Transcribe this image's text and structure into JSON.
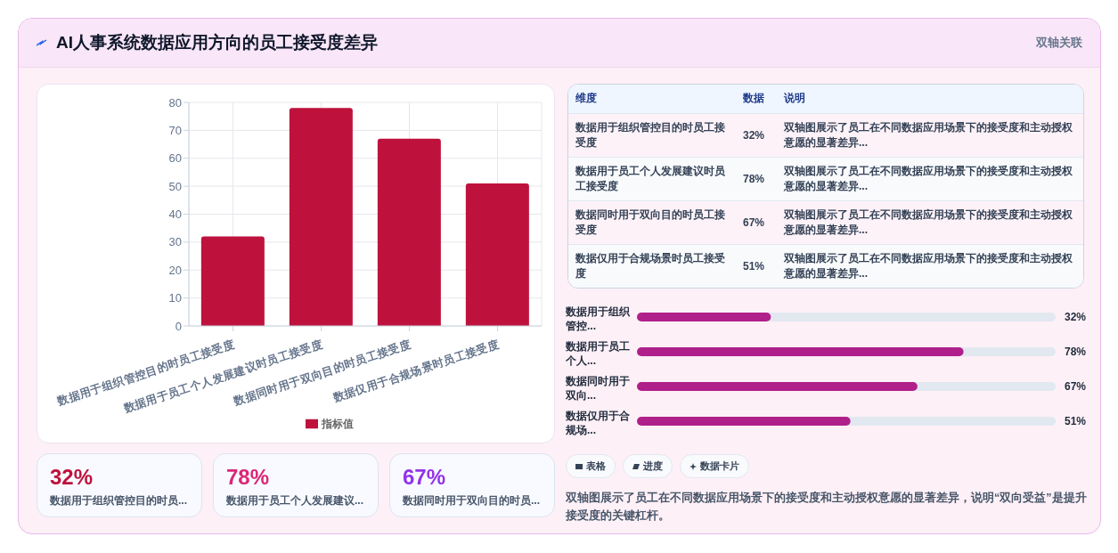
{
  "chart_data": [
    {
      "type": "bar",
      "title": "AI人事系统数据应用方向的员工接受度差异",
      "annotations": [
        "双轴关联"
      ],
      "categories": [
        "数据用于组织管控目的时员工接受度",
        "数据用于员工个人发展建议时员工接受度",
        "数据同时用于双向目的时员工接受度",
        "数据仅用于合规场景时员工接受度"
      ],
      "series": [
        {
          "name": "指标值",
          "color": "#be123c",
          "values": [
            32,
            78,
            67,
            51
          ]
        }
      ],
      "ylim": [
        0,
        80
      ],
      "yticks": [
        0,
        10,
        20,
        30,
        40,
        50,
        60,
        70,
        80
      ],
      "grid": true,
      "legend": "bottom"
    },
    {
      "type": "other",
      "categories": [
        "数据用于组织管控目的时员工接受度",
        "数据用于员工个人发展建议时员工接受度",
        "数据同时用于双向目的时员工接受度",
        "数据仅用于合规场景时员工接受度"
      ],
      "value_labels": [
        "32%",
        "78%",
        "67%",
        "51%"
      ],
      "annotations": [
        "维度",
        "数据",
        "说明",
        "双轴图展示了员工在不同数据应用场景下的接受度和主动授权意愿的显著差异...",
        "双轴图展示了员工在不同数据应用场景下的接受度和主动授权意愿的显著差异...",
        "双轴图展示了员工在不同数据应用场景下的接受度和主动授权意愿的显著差异...",
        "双轴图展示了员工在不同数据应用场景下的接受度和主动授权意愿的显著差异..."
      ]
    },
    {
      "type": "bar",
      "orientation": "horizontal",
      "categories": [
        "数据用于组织管控...",
        "数据用于员工个人...",
        "数据同时用于双向...",
        "数据仅用于合规场..."
      ],
      "values": [
        32,
        78,
        67,
        51
      ],
      "value_labels": [
        "32%",
        "78%",
        "67%",
        "51%"
      ],
      "color": "#b0208a",
      "xlim": [
        0,
        100
      ],
      "tick_labels": "y",
      "annotations": [
        "表格",
        "进度",
        "数据卡片",
        "双轴图展示了员工在不同数据应用场景下的接受度和主动授权意愿的显著差异，说明“双向受益”是提升接受度的关键杠杆。"
      ]
    },
    {
      "type": "other",
      "categories": [
        "数据用于组织管控目的时员...",
        "数据用于员工个人发展建议...",
        "数据同时用于双向目的时员..."
      ],
      "value_labels": [
        "32%",
        "78%",
        "67%"
      ]
    }
  ]
}
